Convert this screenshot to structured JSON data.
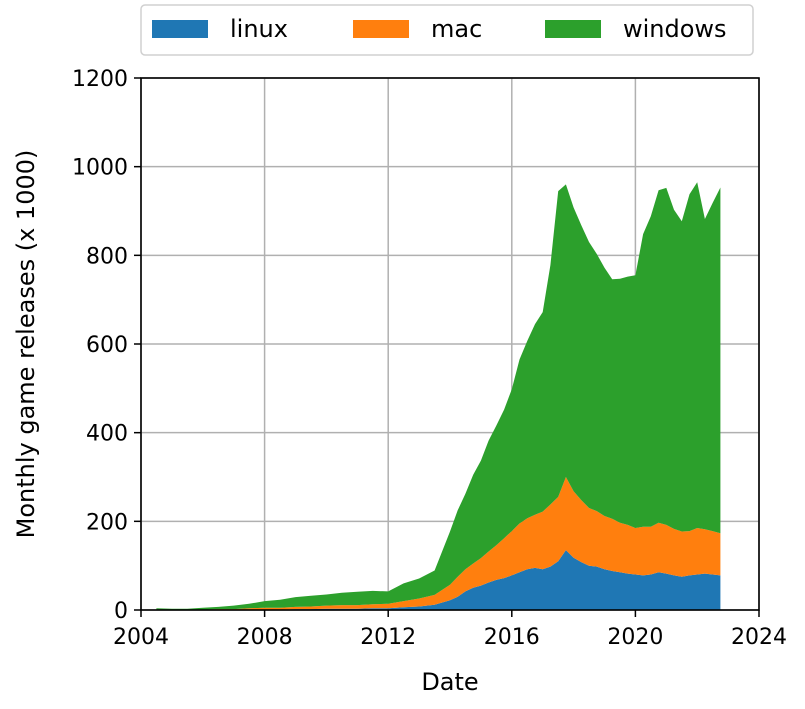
{
  "chart_data": {
    "type": "area",
    "stacked": true,
    "title": "",
    "xlabel": "Date",
    "ylabel": "Monthly game releases (x 1000)",
    "xlim": [
      2004,
      2024
    ],
    "ylim": [
      0,
      1200
    ],
    "xticks": [
      "2004",
      "2008",
      "2012",
      "2016",
      "2020",
      "2024"
    ],
    "yticks": [
      "0",
      "200",
      "400",
      "600",
      "800",
      "1000",
      "1200"
    ],
    "grid": true,
    "legend_position": "top-center",
    "x": [
      2004.5,
      2005.0,
      2005.5,
      2006.0,
      2006.5,
      2007.0,
      2007.5,
      2008.0,
      2008.5,
      2009.0,
      2009.5,
      2010.0,
      2010.5,
      2011.0,
      2011.5,
      2012.0,
      2012.5,
      2013.0,
      2013.5,
      2014.0,
      2014.25,
      2014.5,
      2014.75,
      2015.0,
      2015.25,
      2015.5,
      2015.75,
      2016.0,
      2016.25,
      2016.5,
      2016.75,
      2017.0,
      2017.25,
      2017.5,
      2017.75,
      2018.0,
      2018.25,
      2018.5,
      2018.75,
      2019.0,
      2019.25,
      2019.5,
      2019.75,
      2020.0,
      2020.25,
      2020.5,
      2020.75,
      2021.0,
      2021.25,
      2021.5,
      2021.75,
      2022.0,
      2022.25,
      2022.5,
      2022.75
    ],
    "series": [
      {
        "name": "linux",
        "color": "#1f77b4",
        "values": [
          0,
          0,
          0,
          0,
          0,
          0,
          1,
          1,
          1,
          2,
          2,
          3,
          3,
          3,
          4,
          4,
          6,
          8,
          12,
          22,
          30,
          42,
          50,
          55,
          62,
          68,
          72,
          78,
          85,
          92,
          95,
          92,
          98,
          110,
          135,
          118,
          108,
          100,
          98,
          92,
          88,
          85,
          82,
          80,
          78,
          80,
          85,
          82,
          78,
          75,
          78,
          80,
          82,
          80,
          78
        ]
      },
      {
        "name": "mac",
        "color": "#ff7f0e",
        "values": [
          1,
          1,
          1,
          1,
          2,
          2,
          3,
          4,
          4,
          5,
          6,
          7,
          8,
          8,
          9,
          10,
          14,
          18,
          22,
          35,
          45,
          50,
          55,
          62,
          70,
          78,
          90,
          100,
          110,
          115,
          120,
          130,
          140,
          145,
          165,
          150,
          140,
          130,
          125,
          120,
          118,
          112,
          110,
          105,
          110,
          108,
          112,
          110,
          105,
          102,
          100,
          105,
          100,
          98,
          95
        ]
      },
      {
        "name": "windows",
        "color": "#2ca02c",
        "values": [
          3,
          2,
          2,
          4,
          5,
          8,
          10,
          15,
          18,
          22,
          24,
          25,
          28,
          30,
          30,
          28,
          40,
          45,
          55,
          120,
          150,
          170,
          200,
          220,
          250,
          270,
          290,
          320,
          370,
          400,
          430,
          450,
          540,
          690,
          660,
          640,
          620,
          600,
          580,
          560,
          540,
          550,
          560,
          570,
          660,
          700,
          750,
          760,
          720,
          700,
          760,
          780,
          700,
          740,
          780
        ]
      }
    ]
  }
}
